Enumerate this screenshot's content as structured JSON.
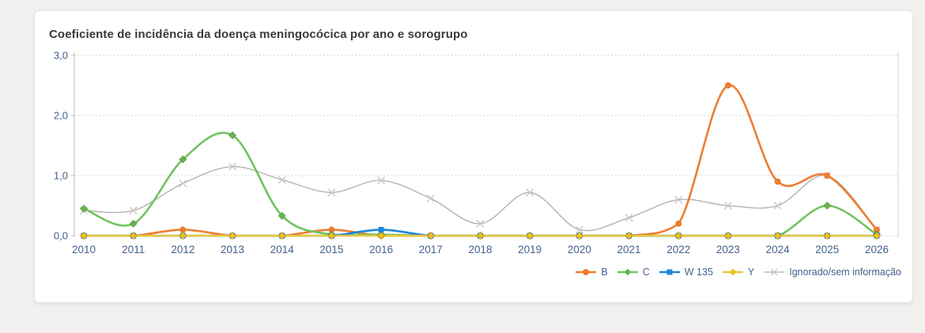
{
  "card": {
    "title": "Coeficiente de incidência da doença meningocócica por ano e sorogrupo"
  },
  "chart_data": {
    "type": "line",
    "title": "Coeficiente de incidência da doença meningocócica por ano e sorogrupo",
    "x": [
      "2010",
      "2011",
      "2012",
      "2013",
      "2014",
      "2015",
      "2016",
      "2017",
      "2018",
      "2019",
      "2020",
      "2021",
      "2022",
      "2023",
      "2024",
      "2025",
      "2026"
    ],
    "series": [
      {
        "name": "B",
        "marker": "circle",
        "color": "#ED7D31",
        "marker_color": "#ED7D31",
        "values": [
          0,
          0,
          0.1,
          0,
          0,
          0.1,
          0,
          0,
          0,
          0,
          0,
          0,
          0.2,
          2.5,
          0.9,
          1.0,
          0.1
        ]
      },
      {
        "name": "C",
        "marker": "diamond",
        "color": "#71C360",
        "marker_color": "#5EB84D",
        "values": [
          0.45,
          0.2,
          1.27,
          1.67,
          0.33,
          0.02,
          0.02,
          0,
          0,
          0,
          0,
          0,
          0,
          0,
          0,
          0.5,
          0.02
        ]
      },
      {
        "name": "W 135",
        "marker": "square",
        "color": "#1E86D9",
        "marker_color": "#1E86D9",
        "values": [
          0,
          0,
          0,
          0,
          0,
          0,
          0.1,
          0,
          0,
          0,
          0,
          0,
          0,
          0,
          0,
          0,
          0
        ]
      },
      {
        "name": "Y",
        "marker": "diamond",
        "color": "#E9C83E",
        "marker_color": "#EFBF1C",
        "values": [
          0,
          0,
          0,
          0,
          0,
          0,
          0,
          0,
          0,
          0,
          0,
          0,
          0,
          0,
          0,
          0,
          0
        ]
      },
      {
        "name": "Ignorado/sem informação",
        "marker": "x",
        "color": "#B0AEAC",
        "marker_color": "#C9C7C5",
        "values": [
          0.42,
          0.42,
          0.87,
          1.15,
          0.93,
          0.72,
          0.92,
          0.62,
          0.2,
          0.72,
          0.1,
          0.3,
          0.6,
          0.5,
          0.5,
          1.0,
          0.1
        ]
      }
    ],
    "ylim": [
      0,
      3
    ],
    "yticks": [
      {
        "label": "0,0",
        "value": 0
      },
      {
        "label": "1,0",
        "value": 1
      },
      {
        "label": "2,0",
        "value": 2
      },
      {
        "label": "3,0",
        "value": 3
      }
    ],
    "grid": "dotted horizontal gridlines",
    "legend_position": "bottom-right",
    "axis_label_color": "#44608E",
    "grid_color": "#C9C9C9",
    "axis_line_color": "#BDBDBD",
    "smooth": true
  }
}
